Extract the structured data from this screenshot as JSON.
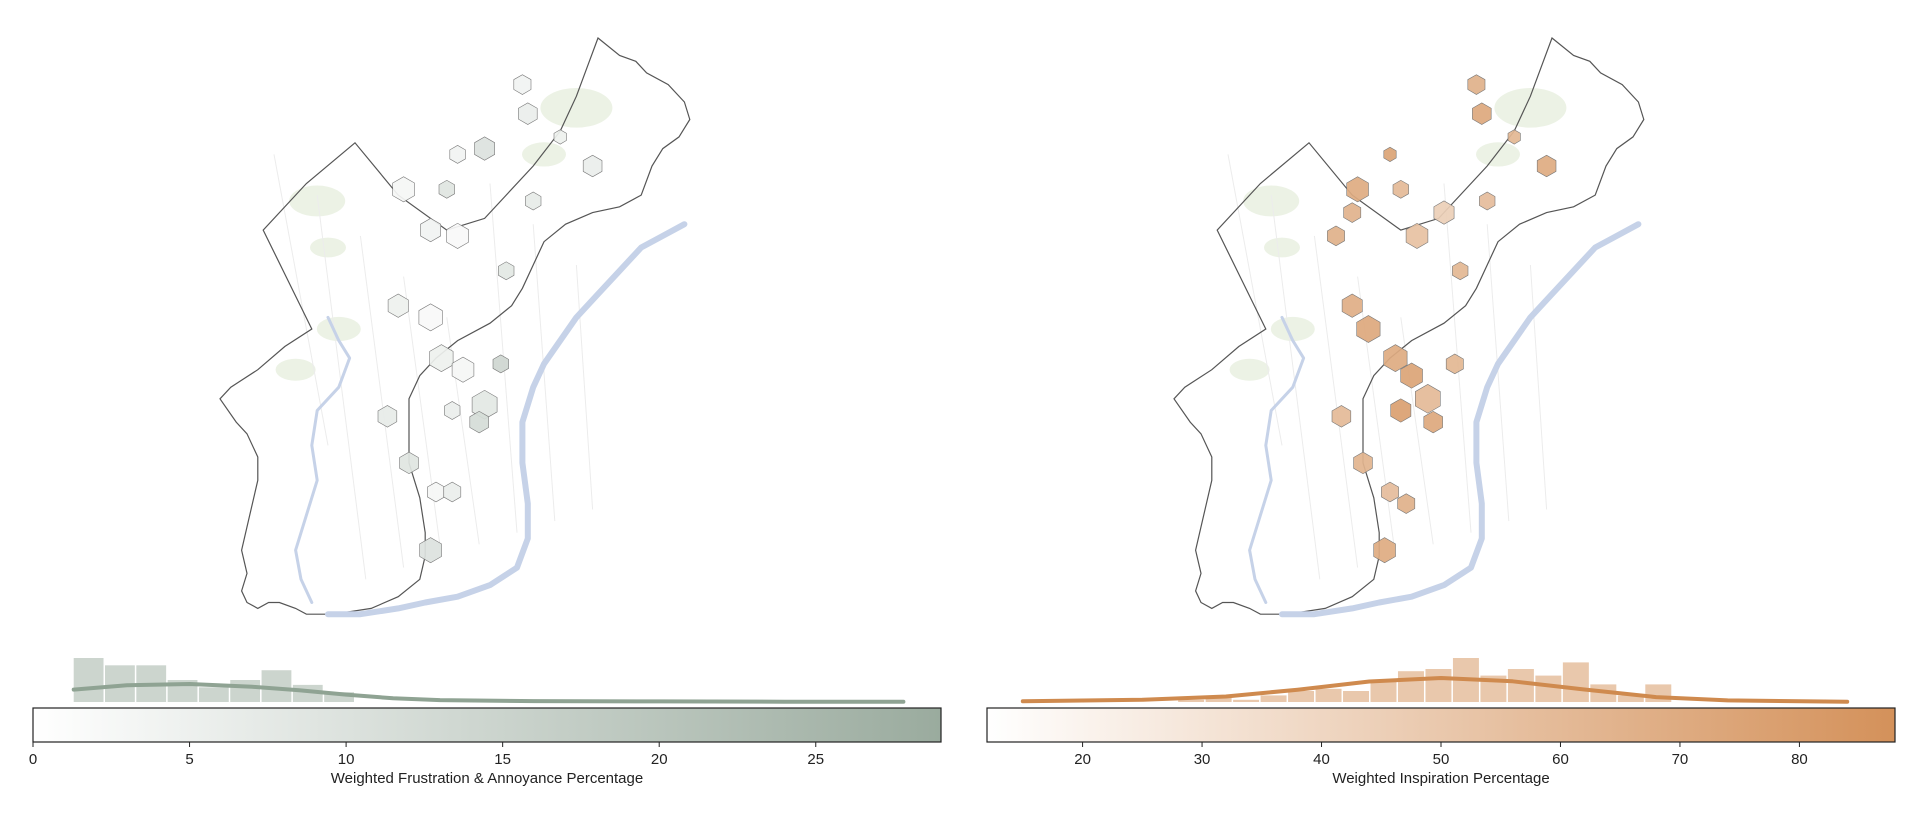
{
  "colors": {
    "left_accent": "#9aab9e",
    "left_kde": "#8fa393",
    "right_accent": "#d4915a",
    "right_kde": "#cf8a4e",
    "river": "#c6d2e8",
    "park": "#e6eedc",
    "outline": "#555555"
  },
  "panels": [
    {
      "id": "left",
      "chart_data": {
        "type": "map",
        "description_kind": "hexbin choropleth over city outline with histogram + kde",
        "colorbar": {
          "min": 0,
          "max": 29,
          "ticks": [
            0,
            5,
            10,
            15,
            20,
            25
          ],
          "tick_labels": [
            "0",
            "5",
            "10",
            "15",
            "20",
            "25"
          ],
          "label": "Weighted Frustration & Annoyance Percentage",
          "color_low": "#ffffff",
          "color_high": "#9aab9e"
        },
        "histogram": {
          "bin_width": 1.0,
          "bin_starts": [
            1.3,
            2.3,
            3.3,
            4.3,
            5.3,
            6.3,
            7.3,
            8.3,
            9.3
          ],
          "counts": [
            9,
            7.5,
            7.5,
            4.5,
            3,
            4.5,
            6.5,
            3.5,
            2
          ]
        },
        "kde": {
          "x": [
            1.3,
            3,
            5,
            7,
            8.5,
            10,
            11.5,
            13,
            16,
            20,
            24,
            27.8
          ],
          "y": [
            4,
            5.4,
            5.8,
            4.9,
            3.8,
            2.4,
            1.2,
            0.6,
            0.3,
            0.2,
            0.1,
            0.05
          ]
        },
        "hexes": [
          {
            "x": 0.34,
            "y": 0.26,
            "v": 3,
            "s": 1.4
          },
          {
            "x": 0.44,
            "y": 0.2,
            "v": 4,
            "s": 1.0
          },
          {
            "x": 0.57,
            "y": 0.13,
            "v": 6,
            "s": 1.2
          },
          {
            "x": 0.56,
            "y": 0.08,
            "v": 4,
            "s": 1.1
          },
          {
            "x": 0.49,
            "y": 0.19,
            "v": 10,
            "s": 1.3
          },
          {
            "x": 0.63,
            "y": 0.17,
            "v": 5,
            "s": 0.8
          },
          {
            "x": 0.69,
            "y": 0.22,
            "v": 6,
            "s": 1.2
          },
          {
            "x": 0.42,
            "y": 0.26,
            "v": 9,
            "s": 1.0
          },
          {
            "x": 0.39,
            "y": 0.33,
            "v": 4,
            "s": 1.3
          },
          {
            "x": 0.44,
            "y": 0.34,
            "v": 2,
            "s": 1.4
          },
          {
            "x": 0.58,
            "y": 0.28,
            "v": 7,
            "s": 1.0
          },
          {
            "x": 0.53,
            "y": 0.4,
            "v": 8,
            "s": 1.0
          },
          {
            "x": 0.33,
            "y": 0.46,
            "v": 5,
            "s": 1.3
          },
          {
            "x": 0.39,
            "y": 0.48,
            "v": 2,
            "s": 1.5
          },
          {
            "x": 0.41,
            "y": 0.55,
            "v": 5,
            "s": 1.5
          },
          {
            "x": 0.45,
            "y": 0.57,
            "v": 3,
            "s": 1.4
          },
          {
            "x": 0.49,
            "y": 0.63,
            "v": 8,
            "s": 1.6
          },
          {
            "x": 0.43,
            "y": 0.64,
            "v": 6,
            "s": 1.0
          },
          {
            "x": 0.31,
            "y": 0.65,
            "v": 7,
            "s": 1.2
          },
          {
            "x": 0.35,
            "y": 0.73,
            "v": 9,
            "s": 1.2
          },
          {
            "x": 0.4,
            "y": 0.78,
            "v": 3,
            "s": 1.1
          },
          {
            "x": 0.43,
            "y": 0.78,
            "v": 6,
            "s": 1.1
          },
          {
            "x": 0.39,
            "y": 0.88,
            "v": 10,
            "s": 1.4
          },
          {
            "x": 0.52,
            "y": 0.56,
            "v": 14,
            "s": 1.0
          },
          {
            "x": 0.48,
            "y": 0.66,
            "v": 12,
            "s": 1.2
          }
        ]
      }
    },
    {
      "id": "right",
      "chart_data": {
        "type": "map",
        "description_kind": "hexbin choropleth over city outline with histogram + kde",
        "colorbar": {
          "min": 12,
          "max": 88,
          "ticks": [
            20,
            30,
            40,
            50,
            60,
            70,
            80
          ],
          "tick_labels": [
            "20",
            "30",
            "40",
            "50",
            "60",
            "70",
            "80"
          ],
          "label": "Weighted Inspiration Percentage",
          "color_low": "#ffffff",
          "color_high": "#d4915a"
        },
        "histogram": {
          "bin_width": 2.3,
          "bin_starts": [
            28,
            30.3,
            32.6,
            34.9,
            37.2,
            39.5,
            41.8,
            44.1,
            46.4,
            48.7,
            51,
            53.3,
            55.6,
            57.9,
            60.2,
            62.5,
            64.8,
            67.1
          ],
          "counts": [
            0.5,
            1,
            0.5,
            1.5,
            2.5,
            3,
            2.5,
            5,
            7,
            7.5,
            10,
            6,
            7.5,
            6,
            9,
            4,
            1.5,
            4
          ]
        },
        "kde": {
          "x": [
            15,
            25,
            32,
            38,
            44,
            50,
            56,
            62,
            68,
            74,
            84
          ],
          "y": [
            0.3,
            0.8,
            2.0,
            4.5,
            7.5,
            8.8,
            7.6,
            4.6,
            1.8,
            0.6,
            0.1
          ]
        },
        "hexes": [
          {
            "x": 0.34,
            "y": 0.26,
            "v": 70,
            "s": 1.4
          },
          {
            "x": 0.4,
            "y": 0.2,
            "v": 75,
            "s": 0.8
          },
          {
            "x": 0.57,
            "y": 0.13,
            "v": 72,
            "s": 1.2
          },
          {
            "x": 0.56,
            "y": 0.08,
            "v": 66,
            "s": 1.1
          },
          {
            "x": 0.5,
            "y": 0.3,
            "v": 45,
            "s": 1.3
          },
          {
            "x": 0.63,
            "y": 0.17,
            "v": 62,
            "s": 0.8
          },
          {
            "x": 0.69,
            "y": 0.22,
            "v": 70,
            "s": 1.2
          },
          {
            "x": 0.42,
            "y": 0.26,
            "v": 60,
            "s": 1.0
          },
          {
            "x": 0.33,
            "y": 0.3,
            "v": 65,
            "s": 1.1
          },
          {
            "x": 0.45,
            "y": 0.34,
            "v": 55,
            "s": 1.4
          },
          {
            "x": 0.58,
            "y": 0.28,
            "v": 58,
            "s": 1.0
          },
          {
            "x": 0.53,
            "y": 0.4,
            "v": 62,
            "s": 1.0
          },
          {
            "x": 0.33,
            "y": 0.46,
            "v": 68,
            "s": 1.3
          },
          {
            "x": 0.36,
            "y": 0.5,
            "v": 72,
            "s": 1.5
          },
          {
            "x": 0.41,
            "y": 0.55,
            "v": 70,
            "s": 1.5
          },
          {
            "x": 0.44,
            "y": 0.58,
            "v": 75,
            "s": 1.4
          },
          {
            "x": 0.47,
            "y": 0.62,
            "v": 60,
            "s": 1.6
          },
          {
            "x": 0.42,
            "y": 0.64,
            "v": 78,
            "s": 1.3
          },
          {
            "x": 0.31,
            "y": 0.65,
            "v": 60,
            "s": 1.2
          },
          {
            "x": 0.35,
            "y": 0.73,
            "v": 64,
            "s": 1.2
          },
          {
            "x": 0.4,
            "y": 0.78,
            "v": 58,
            "s": 1.1
          },
          {
            "x": 0.43,
            "y": 0.8,
            "v": 66,
            "s": 1.1
          },
          {
            "x": 0.39,
            "y": 0.88,
            "v": 70,
            "s": 1.4
          },
          {
            "x": 0.52,
            "y": 0.56,
            "v": 62,
            "s": 1.1
          },
          {
            "x": 0.48,
            "y": 0.66,
            "v": 72,
            "s": 1.2
          },
          {
            "x": 0.3,
            "y": 0.34,
            "v": 66,
            "s": 1.1
          }
        ]
      }
    }
  ]
}
